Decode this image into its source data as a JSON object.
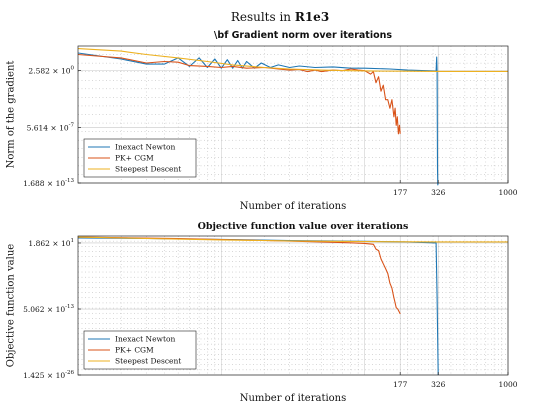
{
  "figure": {
    "suptitle_prefix": "Results in ",
    "suptitle_bold": "R1e3"
  },
  "colors": {
    "inexact_newton": "#1f77b4",
    "pk_cgm": "#d95319",
    "steepest_descent": "#edb120",
    "grid": "#b0b0b0",
    "axes": "#262626"
  },
  "chart_data": [
    {
      "type": "line",
      "title": "\\bf Gradient norm over iterations",
      "xlabel": "Number of iterations",
      "ylabel": "Norm of the gradient",
      "xscale": "log",
      "yscale": "log",
      "xlim": [
        1,
        1000
      ],
      "ylim": [
        1.688e-13,
        2000
      ],
      "xticks": [
        177,
        326,
        1000
      ],
      "xtick_labels": [
        "177",
        "326",
        "1000"
      ],
      "yticks": [
        1.688e-13,
        5.614e-07,
        2.582
      ],
      "ytick_labels": [
        {
          "mant": "1.688",
          "exp": "-13"
        },
        {
          "mant": "5.614",
          "exp": "-7"
        },
        {
          "mant": "2.582",
          "exp": "0"
        }
      ],
      "grid": true,
      "legend_position": "bottom-left",
      "series": [
        {
          "name": "Inexact Newton",
          "color_key": "inexact_newton",
          "points": [
            [
              1,
              300
            ],
            [
              2,
              60
            ],
            [
              3,
              15
            ],
            [
              4,
              15
            ],
            [
              5,
              80
            ],
            [
              6,
              8
            ],
            [
              7,
              80
            ],
            [
              8,
              6
            ],
            [
              9,
              60
            ],
            [
              10,
              5
            ],
            [
              11,
              50
            ],
            [
              12,
              5
            ],
            [
              13,
              40
            ],
            [
              14,
              5
            ],
            [
              15,
              30
            ],
            [
              17,
              5
            ],
            [
              19,
              20
            ],
            [
              22,
              6
            ],
            [
              25,
              12
            ],
            [
              30,
              6
            ],
            [
              35,
              9
            ],
            [
              45,
              6
            ],
            [
              60,
              7
            ],
            [
              80,
              5
            ],
            [
              100,
              5
            ],
            [
              150,
              4
            ],
            [
              200,
              3
            ],
            [
              250,
              2.6
            ],
            [
              300,
              2.4
            ],
            [
              315,
              2.3
            ],
            [
              318,
              100
            ],
            [
              320,
              2.0
            ],
            [
              322,
              1e-11
            ],
            [
              324,
              1e-13
            ],
            [
              326,
              1.688e-13
            ]
          ]
        },
        {
          "name": "PK+ CGM",
          "color_key": "pk_cgm",
          "points": [
            [
              1,
              200
            ],
            [
              2,
              80
            ],
            [
              3,
              20
            ],
            [
              4,
              30
            ],
            [
              5,
              25
            ],
            [
              6,
              10
            ],
            [
              8,
              8
            ],
            [
              10,
              6
            ],
            [
              12,
              8
            ],
            [
              15,
              5
            ],
            [
              20,
              6
            ],
            [
              25,
              4
            ],
            [
              30,
              3
            ],
            [
              35,
              3.5
            ],
            [
              40,
              2
            ],
            [
              45,
              3
            ],
            [
              50,
              2
            ],
            [
              60,
              3
            ],
            [
              70,
              2.5
            ],
            [
              80,
              4
            ],
            [
              90,
              3
            ],
            [
              100,
              2.5
            ],
            [
              110,
              1
            ],
            [
              115,
              2
            ],
            [
              120,
              0.1
            ],
            [
              125,
              0.5
            ],
            [
              130,
              0.01
            ],
            [
              135,
              0.05
            ],
            [
              140,
              0.001
            ],
            [
              145,
              0.001
            ],
            [
              150,
              0.0001
            ],
            [
              155,
              0.001
            ],
            [
              160,
              1e-05
            ],
            [
              163,
              0.0001
            ],
            [
              166,
              1e-06
            ],
            [
              169,
              1e-05
            ],
            [
              172,
              1e-07
            ],
            [
              175,
              1e-06
            ],
            [
              177,
              1e-07
            ]
          ]
        },
        {
          "name": "Steepest Descent",
          "color_key": "steepest_descent",
          "points": [
            [
              1,
              1000
            ],
            [
              2,
              500
            ],
            [
              3,
              200
            ],
            [
              5,
              80
            ],
            [
              8,
              30
            ],
            [
              12,
              12
            ],
            [
              20,
              6
            ],
            [
              30,
              4
            ],
            [
              50,
              3
            ],
            [
              80,
              2.5
            ],
            [
              120,
              2.3
            ],
            [
              200,
              2.2
            ],
            [
              326,
              2.1
            ],
            [
              500,
              2.1
            ],
            [
              1000,
              2.1
            ]
          ]
        }
      ]
    },
    {
      "type": "line",
      "title": "Objective function value over iterations",
      "xlabel": "Number of iterations",
      "ylabel": "Objective function value",
      "xscale": "log",
      "yscale": "log",
      "xlim": [
        1,
        1000
      ],
      "ylim": [
        1.425e-26,
        500
      ],
      "xticks": [
        177,
        326,
        1000
      ],
      "xtick_labels": [
        "177",
        "326",
        "1000"
      ],
      "yticks": [
        1.425e-26,
        5.062e-13,
        18.62
      ],
      "ytick_labels": [
        {
          "mant": "1.425",
          "exp": "-26"
        },
        {
          "mant": "5.062",
          "exp": "-13"
        },
        {
          "mant": "1.862",
          "exp": "1"
        }
      ],
      "grid": true,
      "legend_position": "bottom-left",
      "series": [
        {
          "name": "Inexact Newton",
          "color_key": "inexact_newton",
          "points": [
            [
              1,
              200
            ],
            [
              3,
              150
            ],
            [
              10,
              100
            ],
            [
              30,
              60
            ],
            [
              100,
              40
            ],
            [
              200,
              30
            ],
            [
              300,
              20
            ],
            [
              315,
              18
            ],
            [
              320,
              1e-10
            ],
            [
              326,
              1.425e-26
            ]
          ]
        },
        {
          "name": "PK+ CGM",
          "color_key": "pk_cgm",
          "points": [
            [
              1,
              300
            ],
            [
              5,
              150
            ],
            [
              20,
              60
            ],
            [
              50,
              30
            ],
            [
              80,
              20
            ],
            [
              100,
              15
            ],
            [
              115,
              10
            ],
            [
              120,
              1
            ],
            [
              125,
              0.5
            ],
            [
              130,
              0.01
            ],
            [
              135,
              0.001
            ],
            [
              140,
              0.0001
            ],
            [
              145,
              1e-05
            ],
            [
              150,
              1e-07
            ],
            [
              155,
              1e-08
            ],
            [
              160,
              1e-10
            ],
            [
              163,
              1e-11
            ],
            [
              166,
              1e-12
            ],
            [
              170,
              5e-13
            ],
            [
              175,
              1e-13
            ],
            [
              177,
              5e-14
            ]
          ]
        },
        {
          "name": "Steepest Descent",
          "color_key": "steepest_descent",
          "points": [
            [
              1,
              300
            ],
            [
              3,
              150
            ],
            [
              10,
              80
            ],
            [
              30,
              50
            ],
            [
              100,
              35
            ],
            [
              200,
              32
            ],
            [
              326,
              30
            ],
            [
              500,
              30
            ],
            [
              1000,
              30
            ]
          ]
        }
      ]
    }
  ]
}
